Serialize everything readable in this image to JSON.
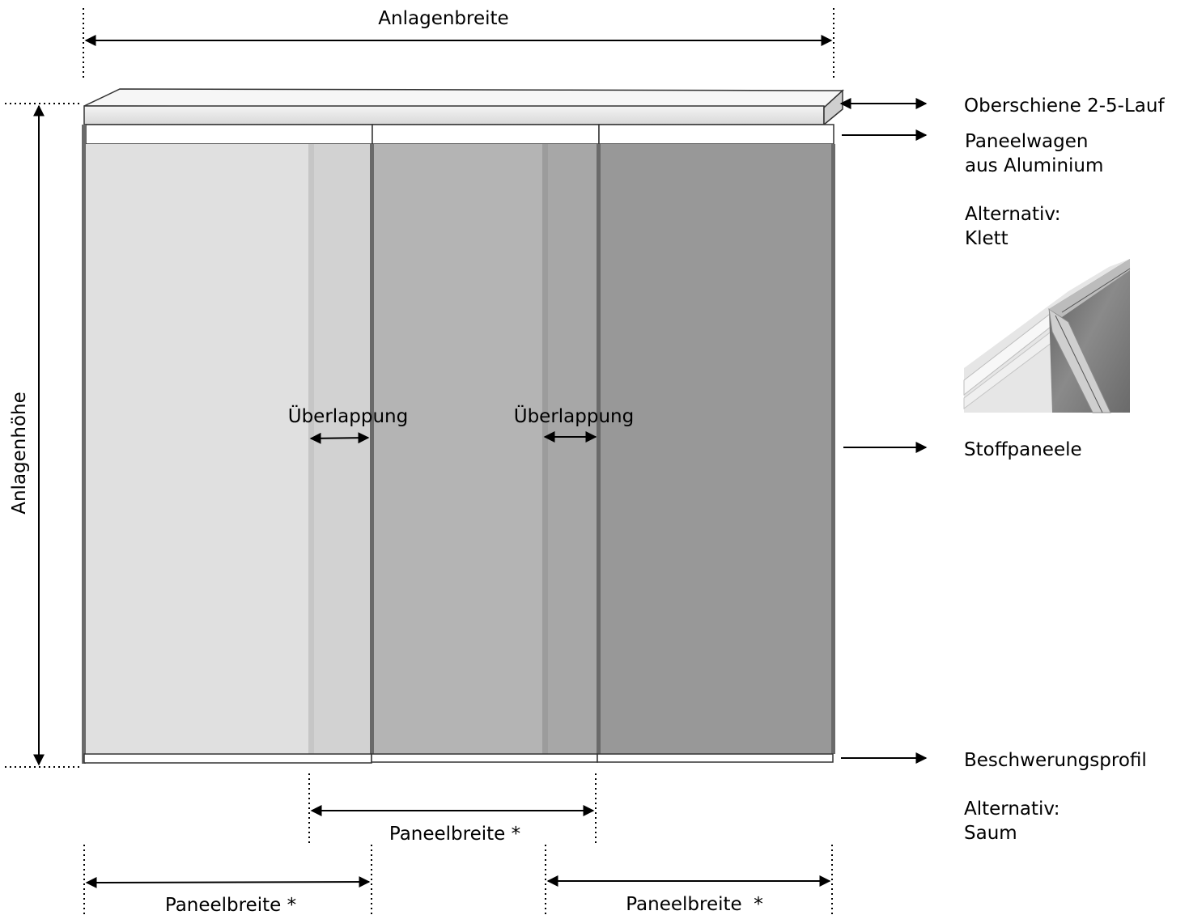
{
  "dimensions": {
    "system_width": "Anlagenbreite",
    "system_height": "Anlagenhöhe",
    "overlap_left": "Überlappung",
    "overlap_right": "Überlappung",
    "panel_width_middle": "Paneelbreite *",
    "panel_width_left": "Paneelbreite *",
    "panel_width_right": "Paneelbreite  *"
  },
  "callouts": {
    "top_rail": "Oberschiene 2-5-Lauf",
    "carriage_line1": "Paneelwagen",
    "carriage_line2": "aus Aluminium",
    "carriage_alt_line1": "Alternativ:",
    "carriage_alt_line2": "Klett",
    "fabric": "Stoffpaneele",
    "weight_profile": "Beschwerungsprofil",
    "weight_alt_line1": "Alternativ:",
    "weight_alt_line2": "Saum"
  },
  "colors": {
    "panel_light": "#e0e0e0",
    "panel_medium": "#b4b4b4",
    "panel_dark": "#989898",
    "frame": "#6a6a6a"
  }
}
